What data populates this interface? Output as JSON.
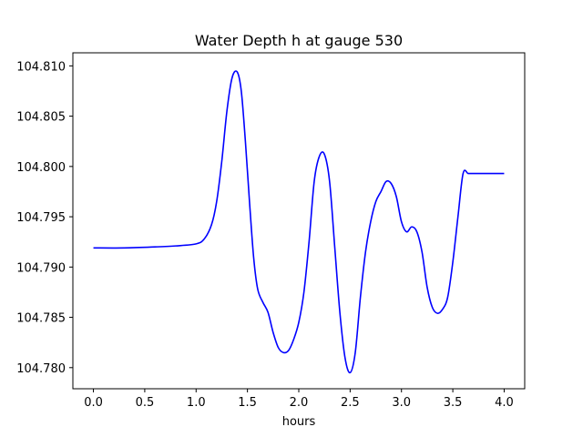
{
  "chart_data": {
    "type": "line",
    "title": "Water Depth h at gauge 530",
    "xlabel": "hours",
    "ylabel": "",
    "xlim": [
      -0.2,
      4.2
    ],
    "ylim": [
      104.7779,
      104.8113
    ],
    "xticks": [
      0.0,
      0.5,
      1.0,
      1.5,
      2.0,
      2.5,
      3.0,
      3.5,
      4.0
    ],
    "xtick_labels": [
      "0.0",
      "0.5",
      "1.0",
      "1.5",
      "2.0",
      "2.5",
      "3.0",
      "3.5",
      "4.0"
    ],
    "yticks": [
      104.78,
      104.785,
      104.79,
      104.795,
      104.8,
      104.805,
      104.81
    ],
    "ytick_labels": [
      "104.780",
      "104.785",
      "104.790",
      "104.795",
      "104.800",
      "104.805",
      "104.810"
    ],
    "grid": false,
    "series": [
      {
        "color": "#0000ff",
        "x": [
          0.0,
          0.3,
          0.6,
          0.8,
          1.0,
          1.08,
          1.15,
          1.2,
          1.25,
          1.3,
          1.35,
          1.4,
          1.44,
          1.48,
          1.52,
          1.56,
          1.6,
          1.65,
          1.7,
          1.75,
          1.8,
          1.85,
          1.9,
          1.95,
          2.0,
          2.05,
          2.1,
          2.15,
          2.2,
          2.25,
          2.3,
          2.35,
          2.4,
          2.45,
          2.5,
          2.55,
          2.6,
          2.65,
          2.7,
          2.75,
          2.8,
          2.85,
          2.9,
          2.95,
          3.0,
          3.05,
          3.1,
          3.15,
          3.2,
          3.25,
          3.3,
          3.35,
          3.4,
          3.45,
          3.5,
          3.55,
          3.6,
          3.65,
          3.7,
          3.75,
          3.8,
          3.85,
          3.9,
          3.95,
          4.0
        ],
        "y": [
          104.7919,
          104.7919,
          104.792,
          104.7921,
          104.7923,
          104.7928,
          104.7942,
          104.7965,
          104.8005,
          104.8055,
          104.8088,
          104.8094,
          104.8075,
          104.8025,
          104.7965,
          104.791,
          104.7878,
          104.7865,
          104.7855,
          104.7835,
          104.782,
          104.7815,
          104.7817,
          104.7828,
          104.7845,
          104.7875,
          104.7925,
          104.7985,
          104.801,
          104.8012,
          104.7985,
          104.792,
          104.7855,
          104.781,
          104.7795,
          104.7815,
          104.787,
          104.7915,
          104.7945,
          104.7965,
          104.7975,
          104.7985,
          104.7983,
          104.797,
          104.7945,
          104.7935,
          104.794,
          104.7935,
          104.7915,
          104.788,
          104.786,
          104.7854,
          104.7858,
          104.787,
          104.7905,
          104.795,
          104.7993,
          104.7993,
          104.7993,
          104.7993,
          104.7993,
          104.7993,
          104.7993,
          104.7993,
          104.7993
        ]
      }
    ]
  }
}
